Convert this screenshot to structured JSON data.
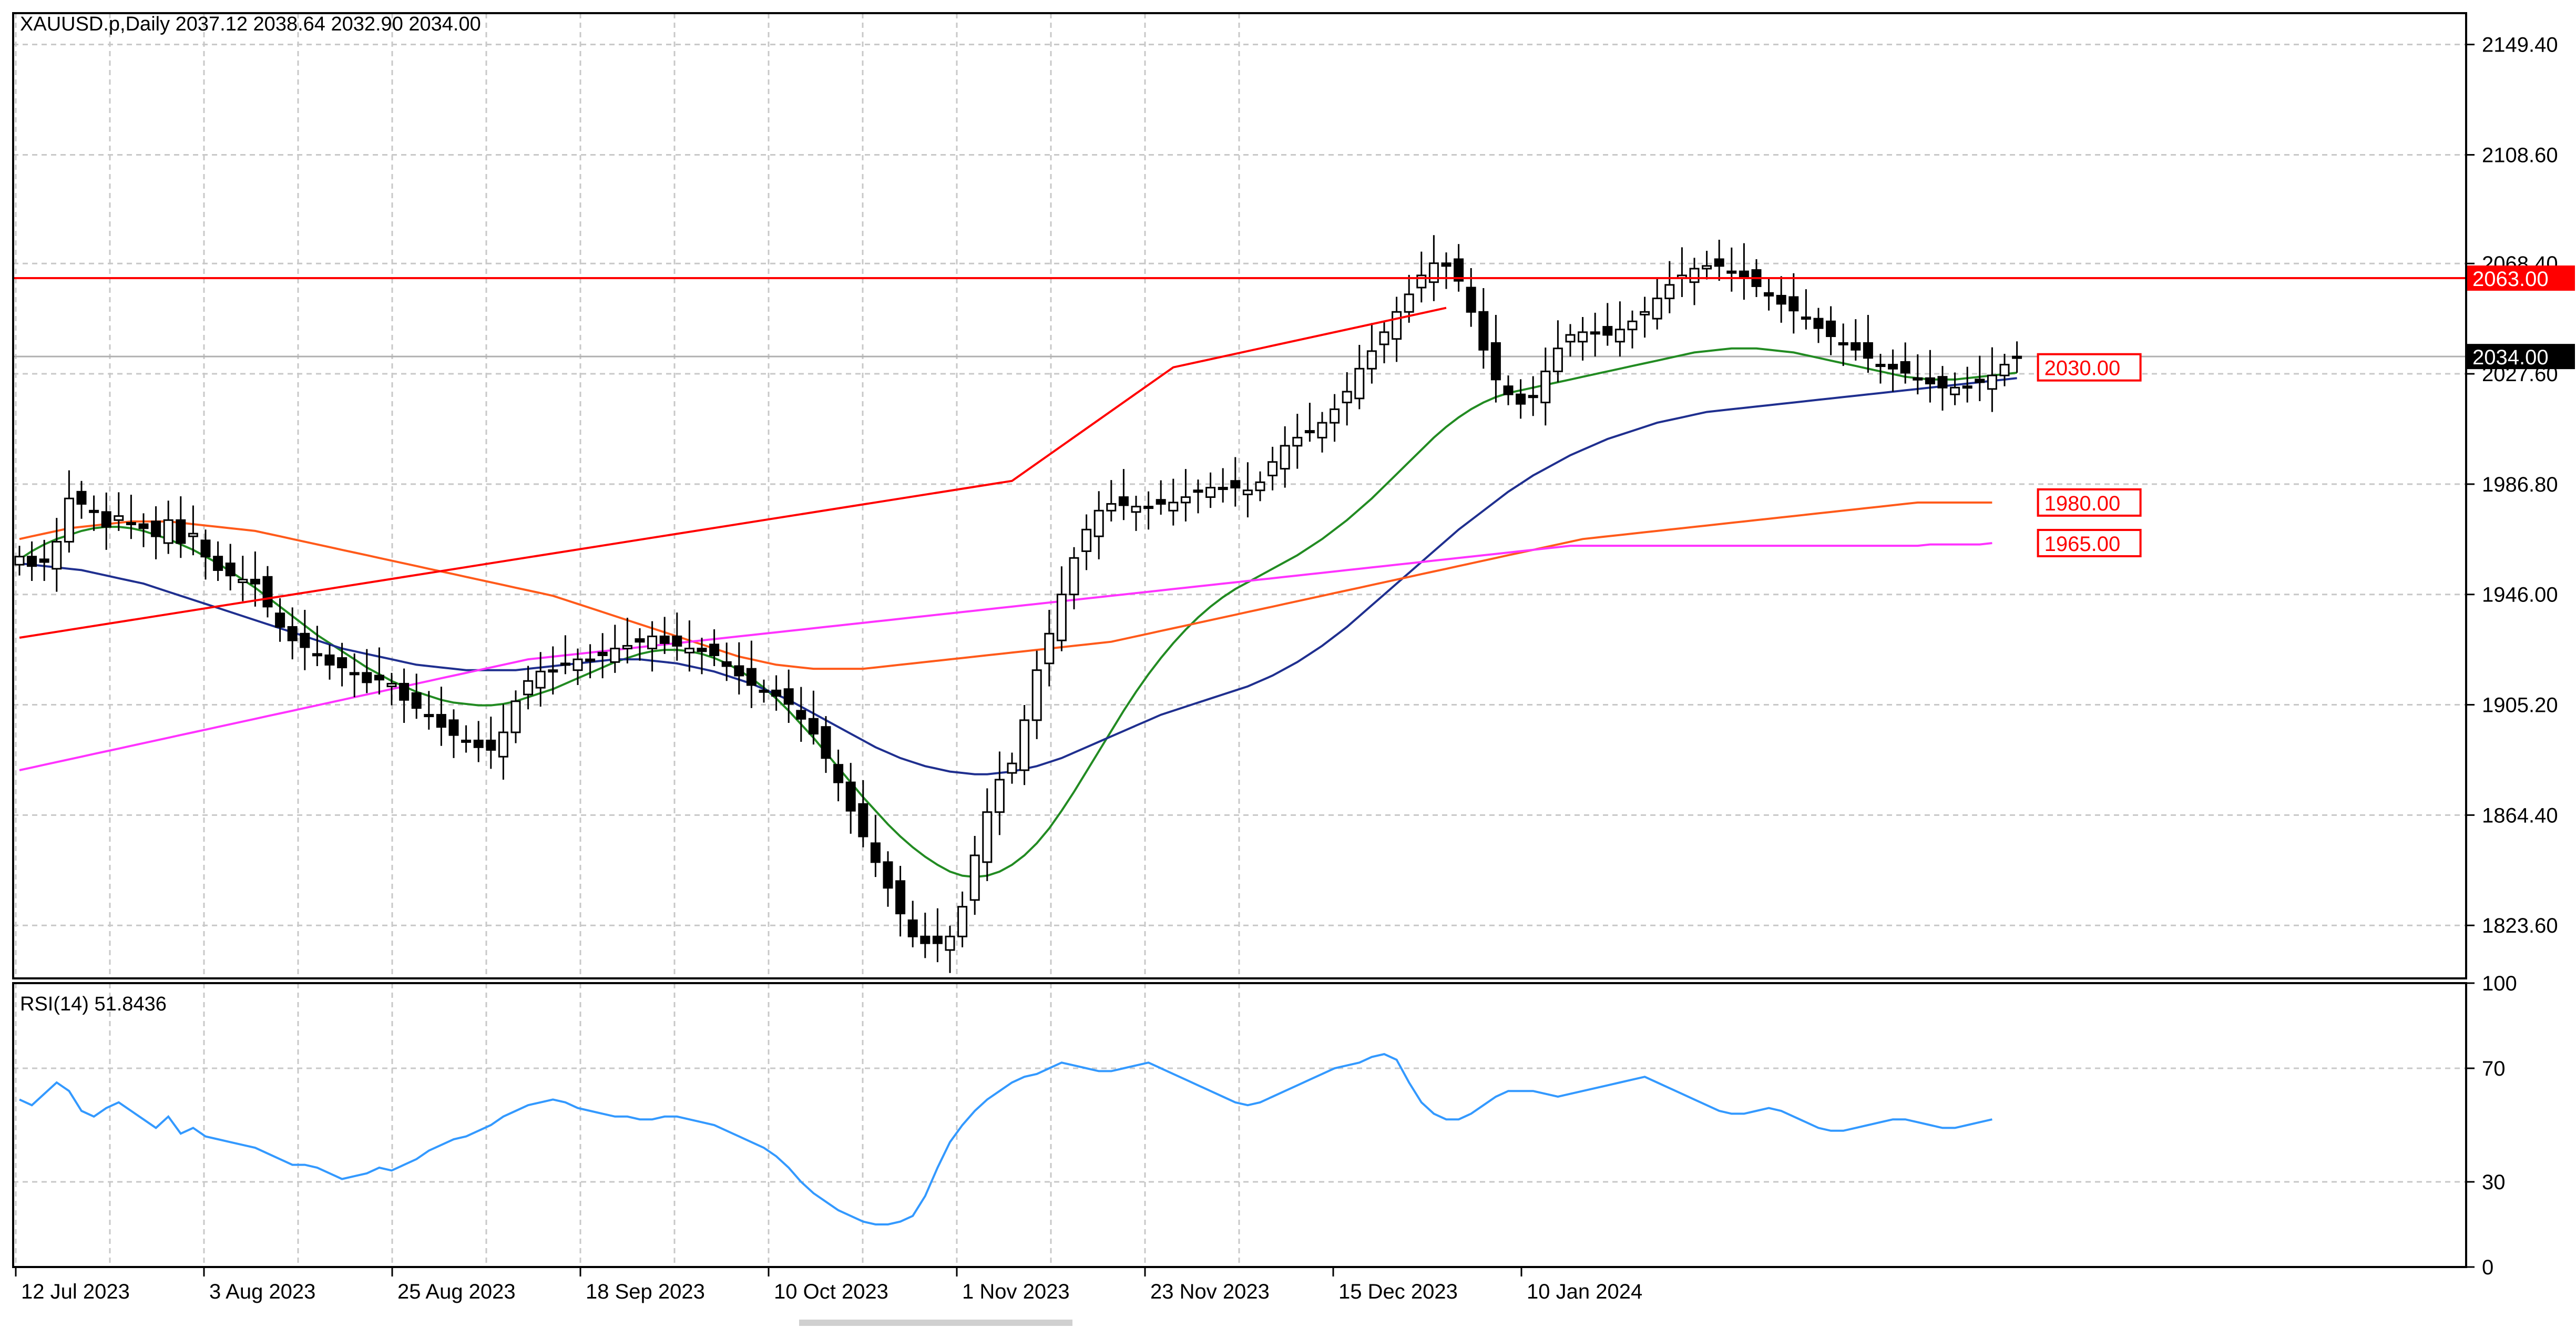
{
  "header": {
    "symbol_info": "XAUUSD.p,Daily  2037.12 2038.64 2032.90 2034.00"
  },
  "rsi_header": "RSI(14) 51.8436",
  "colors": {
    "background": "#ffffff",
    "grid": "#c8c8c8",
    "candle": "#000000",
    "sma20": "#228b22",
    "sma50": "#1f2f8f",
    "sma100": "#ff5a1a",
    "sma200": "#ff33ff",
    "levels": "#ff0000",
    "rsi_line": "#3399ff",
    "current_price_bg": "#000000"
  },
  "chart_data": [
    {
      "type": "candlestick",
      "title": "XAUUSD.p,Daily  2037.12 2038.64 2032.90 2034.00",
      "timeframe": "Daily",
      "ylim": [
        1804,
        2161
      ],
      "y_ticks": [
        "2149.40",
        "2108.60",
        "2068.40",
        "2027.60",
        "1986.80",
        "1946.00",
        "1905.20",
        "1864.40",
        "1823.60"
      ],
      "x_ticks": [
        "12 Jul 2023",
        "3 Aug 2023",
        "25 Aug 2023",
        "18 Sep 2023",
        "10 Oct 2023",
        "1 Nov 2023",
        "23 Nov 2023",
        "15 Dec 2023",
        "10 Jan 2024"
      ],
      "grid": true,
      "current_price": "2034.00",
      "level_labels": [
        "2063.00",
        "2030.00",
        "1980.00",
        "1965.00"
      ],
      "horizontal_level": 2063,
      "level_2063_label": "2063.00",
      "trendline": {
        "points": [
          [
            0,
            1930.0
          ],
          [
            80,
            1988.0
          ],
          [
            93,
            2030.0
          ],
          [
            115,
            2052.0
          ]
        ]
      },
      "closes": [
        1960.0,
        1956.5,
        1958.0,
        1965.5,
        1981.5,
        1979.5,
        1976.5,
        1971.0,
        1975.0,
        1972.0,
        1970.5,
        1967.5,
        1973.5,
        1965.0,
        1968.5,
        1960.0,
        1955.0,
        1953.0,
        1951.5,
        1950.0,
        1941.5,
        1934.0,
        1929.0,
        1926.5,
        1923.5,
        1920.0,
        1919.0,
        1917.0,
        1913.5,
        1914.5,
        1913.0,
        1907.0,
        1904.0,
        1901.5,
        1897.0,
        1894.0,
        1892.0,
        1889.5,
        1888.5,
        1895.0,
        1906.5,
        1914.0,
        1917.5,
        1918.0,
        1920.5,
        1922.0,
        1922.0,
        1923.5,
        1926.0,
        1927.0,
        1928.5,
        1930.5,
        1928.0,
        1927.0,
        1926.0,
        1925.0,
        1923.5,
        1919.5,
        1916.0,
        1912.5,
        1910.5,
        1908.5,
        1905.5,
        1900.0,
        1894.5,
        1885.5,
        1876.5,
        1866.0,
        1856.5,
        1847.0,
        1837.5,
        1828.0,
        1819.5,
        1817.0,
        1817.0,
        1819.5,
        1830.5,
        1849.5,
        1865.5,
        1877.5,
        1883.5,
        1899.5,
        1918.0,
        1931.5,
        1946.0,
        1959.5,
        1970.0,
        1977.0,
        1979.5,
        1979.0,
        1978.5,
        1978.5,
        1979.5,
        1980.0,
        1982.0,
        1984.5,
        1985.5,
        1985.5,
        1985.5,
        1984.5,
        1987.5,
        1995.0,
        2001.0,
        2004.0,
        2006.5,
        2009.5,
        2014.5,
        2021.0,
        2029.5,
        2036.0,
        2043.0,
        2050.5,
        2057.0,
        2064.0,
        2068.5,
        2067.5,
        2062.0,
        2050.5,
        2036.5,
        2025.5,
        2020.0,
        2016.5,
        2019.5,
        2028.5,
        2037.0,
        2042.0,
        2043.0,
        2042.5,
        2042.0,
        2044.0,
        2047.0,
        2050.5,
        2055.5,
        2060.5,
        2064.0,
        2066.5,
        2067.5,
        2067.5,
        2065.5,
        2063.5,
        2060.0,
        2056.5,
        2053.5,
        2051.0,
        2048.0,
        2044.5,
        2041.5,
        2039.0,
        2036.5,
        2033.5,
        2031.0,
        2029.5,
        2028.0,
        2026.0,
        2024.0,
        2022.5,
        2022.5,
        2023.0,
        2024.5,
        2027.0,
        2031.0,
        2034.0
      ],
      "series": [
        {
          "name": "MA20",
          "values": [
            1959.0,
            1962.0,
            1964.5,
            1966.5,
            1968.0,
            1969.5,
            1970.5,
            1971.0,
            1971.0,
            1970.5,
            1969.5,
            1968.0,
            1966.5,
            1964.5,
            1962.5,
            1960.0,
            1957.5,
            1954.5,
            1951.5,
            1948.5,
            1945.0,
            1941.5,
            1938.0,
            1934.5,
            1931.0,
            1928.0,
            1925.0,
            1922.0,
            1919.0,
            1916.5,
            1914.0,
            1912.0,
            1910.0,
            1908.5,
            1907.0,
            1906.0,
            1905.5,
            1905.0,
            1905.0,
            1905.5,
            1906.5,
            1908.0,
            1909.5,
            1911.0,
            1913.0,
            1915.0,
            1917.0,
            1919.0,
            1921.0,
            1922.5,
            1924.0,
            1925.0,
            1925.5,
            1925.5,
            1925.0,
            1924.0,
            1922.5,
            1920.5,
            1918.0,
            1915.0,
            1911.5,
            1907.5,
            1903.0,
            1898.0,
            1893.0,
            1887.5,
            1882.0,
            1876.5,
            1871.0,
            1866.0,
            1861.0,
            1856.5,
            1852.5,
            1849.0,
            1846.0,
            1843.5,
            1842.0,
            1841.5,
            1842.0,
            1843.5,
            1846.0,
            1849.5,
            1854.0,
            1859.5,
            1866.0,
            1873.0,
            1880.5,
            1888.0,
            1895.5,
            1903.0,
            1910.0,
            1916.5,
            1922.5,
            1928.0,
            1933.0,
            1937.5,
            1941.5,
            1945.0,
            1948.0,
            1950.5,
            1953.0,
            1955.5,
            1958.0,
            1960.5,
            1963.5,
            1966.5,
            1970.0,
            1973.5,
            1977.5,
            1981.5,
            1986.0,
            1990.5,
            1995.0,
            1999.5,
            2004.0,
            2008.0,
            2011.5,
            2014.5,
            2017.0,
            2019.0,
            2020.5,
            2021.5,
            2022.5,
            2023.5,
            2024.5,
            2025.5,
            2026.5,
            2027.5,
            2028.5,
            2029.5,
            2030.5,
            2031.5,
            2032.5,
            2033.5,
            2034.5,
            2035.5,
            2036.0,
            2036.5,
            2037.0,
            2037.0,
            2037.0,
            2036.5,
            2036.0,
            2035.5,
            2034.5,
            2033.5,
            2032.5,
            2031.5,
            2030.5,
            2029.5,
            2028.5,
            2027.5,
            2026.5,
            2026.0,
            2025.5,
            2025.5,
            2025.5,
            2026.0,
            2026.5,
            2027.0,
            2027.5,
            2028.0
          ]
        },
        {
          "name": "MA50",
          "values": [
            1957.5,
            1957.0,
            1956.5,
            1956.0,
            1955.5,
            1955.0,
            1954.0,
            1953.0,
            1952.0,
            1951.0,
            1950.0,
            1948.5,
            1947.0,
            1945.5,
            1944.0,
            1942.5,
            1941.0,
            1939.5,
            1938.0,
            1936.5,
            1935.0,
            1933.5,
            1932.0,
            1930.5,
            1929.0,
            1927.5,
            1926.0,
            1925.0,
            1924.0,
            1923.0,
            1922.0,
            1921.0,
            1920.0,
            1919.5,
            1919.0,
            1918.5,
            1918.0,
            1918.0,
            1918.0,
            1918.0,
            1918.0,
            1918.5,
            1919.0,
            1919.5,
            1920.0,
            1920.5,
            1921.0,
            1921.5,
            1922.0,
            1922.0,
            1922.0,
            1921.5,
            1921.0,
            1920.5,
            1919.5,
            1918.5,
            1917.5,
            1916.0,
            1914.5,
            1913.0,
            1911.0,
            1909.0,
            1907.0,
            1904.5,
            1902.0,
            1899.5,
            1897.0,
            1894.5,
            1892.0,
            1889.5,
            1887.5,
            1885.5,
            1884.0,
            1882.5,
            1881.5,
            1880.5,
            1880.0,
            1879.5,
            1879.5,
            1880.0,
            1880.5,
            1881.5,
            1882.5,
            1884.0,
            1885.5,
            1887.5,
            1889.5,
            1891.5,
            1893.5,
            1895.5,
            1897.5,
            1899.5,
            1901.5,
            1903.0,
            1904.5,
            1906.0,
            1907.5,
            1909.0,
            1910.5,
            1912.0,
            1914.0,
            1916.0,
            1918.5,
            1921.0,
            1924.0,
            1927.0,
            1930.5,
            1934.0,
            1938.0,
            1942.0,
            1946.0,
            1950.0,
            1954.0,
            1958.0,
            1962.0,
            1966.0,
            1970.0,
            1973.5,
            1977.0,
            1980.5,
            1984.0,
            1987.0,
            1990.0,
            1992.5,
            1995.0,
            1997.5,
            1999.5,
            2001.5,
            2003.5,
            2005.0,
            2006.5,
            2008.0,
            2009.5,
            2010.5,
            2011.5,
            2012.5,
            2013.5,
            2014.0,
            2014.5,
            2015.0,
            2015.5,
            2016.0,
            2016.5,
            2017.0,
            2017.5,
            2018.0,
            2018.5,
            2019.0,
            2019.5,
            2020.0,
            2020.5,
            2021.0,
            2021.5,
            2022.0,
            2022.5,
            2023.0,
            2023.5,
            2024.0,
            2024.5,
            2025.0,
            2025.5,
            2026.0
          ]
        },
        {
          "name": "MA100",
          "values": [
            1966.5,
            1967.5,
            1968.5,
            1969.5,
            1970.5,
            1971.0,
            1971.5,
            1972.0,
            1972.5,
            1973.0,
            1973.0,
            1973.0,
            1973.0,
            1972.5,
            1972.0,
            1971.5,
            1971.0,
            1970.5,
            1970.0,
            1969.5,
            1968.5,
            1967.5,
            1966.5,
            1965.5,
            1964.5,
            1963.5,
            1962.5,
            1961.5,
            1960.5,
            1959.5,
            1958.5,
            1957.5,
            1956.5,
            1955.5,
            1954.5,
            1953.5,
            1952.5,
            1951.5,
            1950.5,
            1949.5,
            1948.5,
            1947.5,
            1946.5,
            1945.5,
            1944.0,
            1942.5,
            1941.0,
            1939.5,
            1938.0,
            1936.5,
            1935.0,
            1933.5,
            1932.0,
            1930.5,
            1929.0,
            1927.5,
            1926.0,
            1924.5,
            1923.0,
            1922.0,
            1921.0,
            1920.0,
            1919.5,
            1919.0,
            1918.5,
            1918.5,
            1918.5,
            1918.5,
            1918.5,
            1919.0,
            1919.5,
            1920.0,
            1920.5,
            1921.0,
            1921.5,
            1922.0,
            1922.5,
            1923.0,
            1923.5,
            1924.0,
            1924.5,
            1925.0,
            1925.5,
            1926.0,
            1926.5,
            1927.0,
            1927.5,
            1928.0,
            1928.5,
            1929.5,
            1930.5,
            1931.5,
            1932.5,
            1933.5,
            1934.5,
            1935.5,
            1936.5,
            1937.5,
            1938.5,
            1939.5,
            1940.5,
            1941.5,
            1942.5,
            1943.5,
            1944.5,
            1945.5,
            1946.5,
            1947.5,
            1948.5,
            1949.5,
            1950.5,
            1951.5,
            1952.5,
            1953.5,
            1954.5,
            1955.5,
            1956.5,
            1957.5,
            1958.5,
            1959.5,
            1960.5,
            1961.5,
            1962.5,
            1963.5,
            1964.5,
            1965.5,
            1966.5,
            1967.0,
            1967.5,
            1968.0,
            1968.5,
            1969.0,
            1969.5,
            1970.0,
            1970.5,
            1971.0,
            1971.5,
            1972.0,
            1972.5,
            1973.0,
            1973.5,
            1974.0,
            1974.5,
            1975.0,
            1975.5,
            1976.0,
            1976.5,
            1977.0,
            1977.5,
            1978.0,
            1978.5,
            1979.0,
            1979.5,
            1980.0,
            1980.0,
            1980.0,
            1980.0,
            1980.0,
            1980.0,
            1980.0
          ]
        },
        {
          "name": "MA200",
          "values": [
            1881.0,
            1882.0,
            1883.0,
            1884.0,
            1885.0,
            1886.0,
            1887.0,
            1888.0,
            1889.0,
            1890.0,
            1891.0,
            1892.0,
            1893.0,
            1894.0,
            1895.0,
            1896.0,
            1897.0,
            1898.0,
            1899.0,
            1900.0,
            1901.0,
            1902.0,
            1903.0,
            1904.0,
            1905.0,
            1906.0,
            1907.0,
            1908.0,
            1909.0,
            1910.0,
            1911.0,
            1912.0,
            1913.0,
            1914.0,
            1915.0,
            1916.0,
            1917.0,
            1918.0,
            1919.0,
            1920.0,
            1921.0,
            1922.0,
            1922.5,
            1923.0,
            1923.5,
            1924.0,
            1924.5,
            1925.0,
            1925.5,
            1926.0,
            1926.5,
            1927.0,
            1927.5,
            1928.0,
            1928.5,
            1929.0,
            1929.5,
            1930.0,
            1930.5,
            1931.0,
            1931.5,
            1932.0,
            1932.5,
            1933.0,
            1933.5,
            1934.0,
            1934.5,
            1935.0,
            1935.5,
            1936.0,
            1936.5,
            1937.0,
            1937.5,
            1938.0,
            1938.5,
            1939.0,
            1939.5,
            1940.0,
            1940.5,
            1941.0,
            1941.5,
            1942.0,
            1942.5,
            1943.0,
            1943.5,
            1944.0,
            1944.5,
            1945.0,
            1945.5,
            1946.0,
            1946.5,
            1947.0,
            1947.5,
            1948.0,
            1948.5,
            1949.0,
            1949.5,
            1950.0,
            1950.5,
            1951.0,
            1951.5,
            1952.0,
            1952.5,
            1953.0,
            1953.5,
            1954.0,
            1954.5,
            1955.0,
            1955.5,
            1956.0,
            1956.5,
            1957.0,
            1957.5,
            1958.0,
            1958.5,
            1959.0,
            1959.5,
            1960.0,
            1960.5,
            1961.0,
            1961.5,
            1962.0,
            1962.5,
            1963.0,
            1963.5,
            1964.0,
            1964.0,
            1964.0,
            1964.0,
            1964.0,
            1964.0,
            1964.0,
            1964.0,
            1964.0,
            1964.0,
            1964.0,
            1964.0,
            1964.0,
            1964.0,
            1964.0,
            1964.0,
            1964.0,
            1964.0,
            1964.0,
            1964.0,
            1964.0,
            1964.0,
            1964.0,
            1964.0,
            1964.0,
            1964.0,
            1964.0,
            1964.0,
            1964.0,
            1964.5,
            1964.5,
            1964.5,
            1964.5,
            1964.5,
            1965.0
          ]
        }
      ]
    },
    {
      "type": "line",
      "title": "RSI(14) 51.8436",
      "ylim": [
        0,
        100
      ],
      "y_ticks": [
        "100",
        "70",
        "30",
        "0"
      ],
      "rsi_values": [
        59,
        57,
        61,
        65,
        62,
        55,
        53,
        56,
        58,
        55,
        52,
        49,
        53,
        47,
        49,
        46,
        45,
        44,
        43,
        42,
        40,
        38,
        36,
        36,
        35,
        33,
        31,
        32,
        33,
        35,
        34,
        36,
        38,
        41,
        43,
        45,
        46,
        48,
        50,
        53,
        55,
        57,
        58,
        59,
        58,
        56,
        55,
        54,
        53,
        53,
        52,
        52,
        53,
        53,
        52,
        51,
        50,
        48,
        46,
        44,
        42,
        39,
        35,
        30,
        26,
        23,
        20,
        18,
        16,
        15,
        15,
        16,
        18,
        25,
        35,
        44,
        50,
        55,
        59,
        62,
        65,
        67,
        68,
        70,
        72,
        71,
        70,
        69,
        69,
        70,
        71,
        72,
        70,
        68,
        66,
        64,
        62,
        60,
        58,
        57,
        58,
        60,
        62,
        64,
        66,
        68,
        70,
        71,
        72,
        74,
        75,
        73,
        65,
        58,
        54,
        52,
        52,
        54,
        57,
        60,
        62,
        62,
        62,
        61,
        60,
        61,
        62,
        63,
        64,
        65,
        66,
        67,
        65,
        63,
        61,
        59,
        57,
        55,
        54,
        54,
        55,
        56,
        55,
        53,
        51,
        49,
        48,
        48,
        49,
        50,
        51,
        52,
        52,
        51,
        50,
        49,
        49,
        50,
        51,
        52
      ]
    }
  ]
}
